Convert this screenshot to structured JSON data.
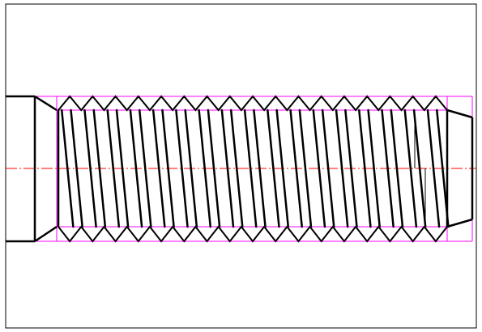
{
  "drawing": {
    "subject": "threaded-shaft",
    "thread_count": 17,
    "colors": {
      "background": "#ffffff",
      "frame": "#000000",
      "outline": "#000000",
      "construction": "#ff00ff",
      "centerline": "#ff0000"
    }
  }
}
